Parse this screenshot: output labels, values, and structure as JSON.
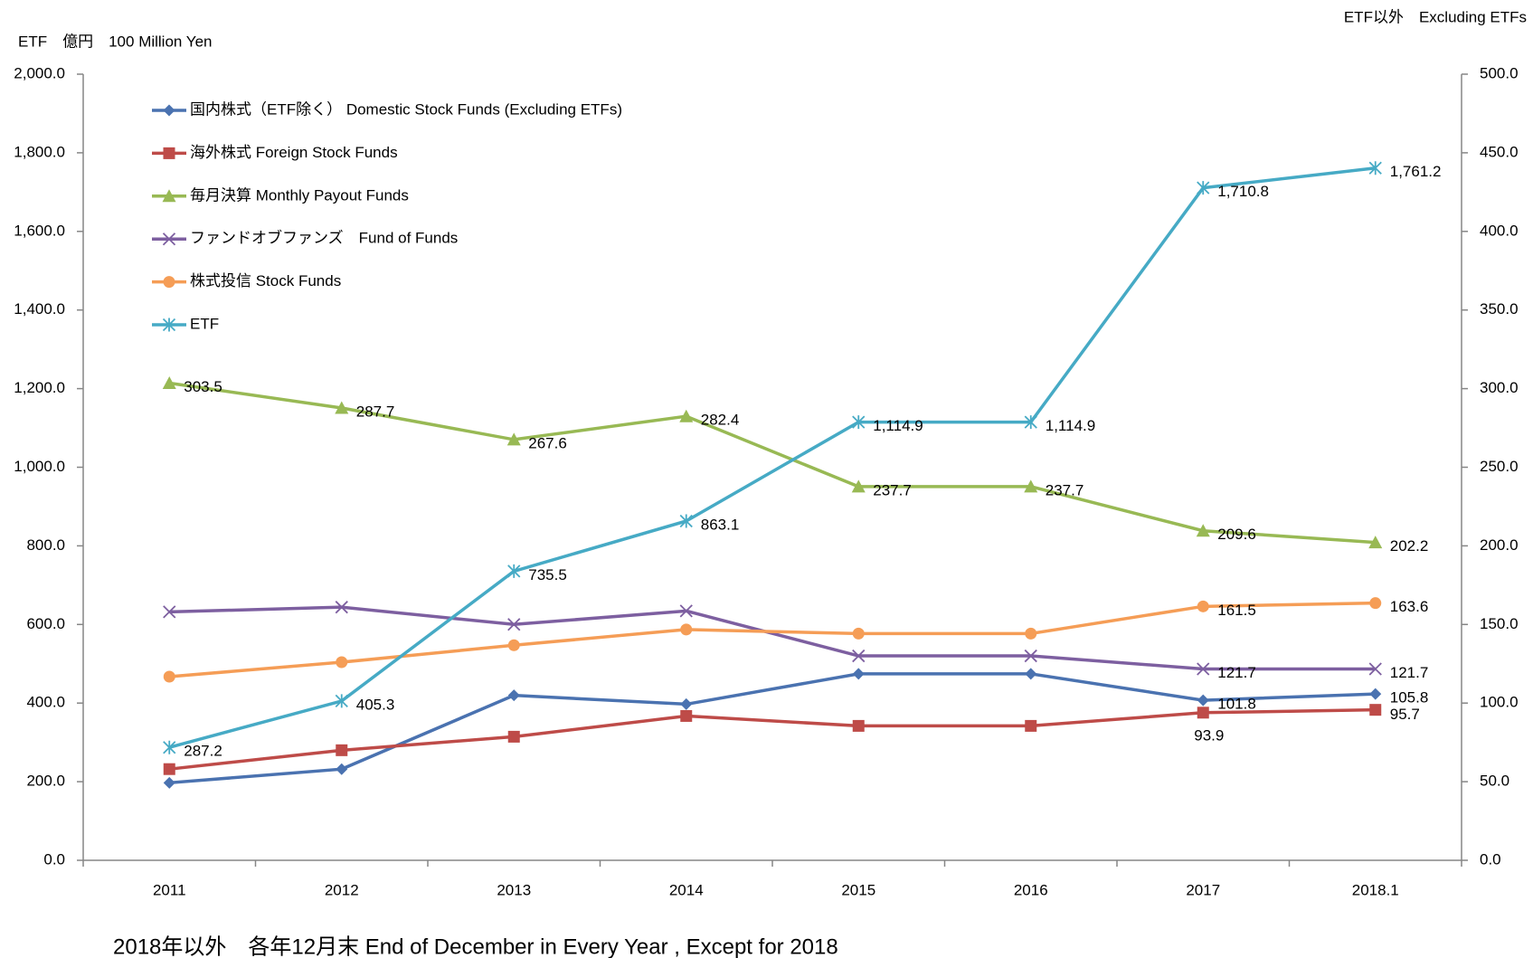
{
  "chart_data": {
    "type": "line",
    "y_label": "ETF　億円　100 Million Yen",
    "y2_label": "ETF以外　Excluding ETFs",
    "footnote": "2018年以外　各年12月末 End of December in Every Year , Except for 2018",
    "categories": [
      "2011",
      "2012",
      "2013",
      "2014",
      "2015",
      "2016",
      "2017",
      "2018.1"
    ],
    "ylim": [
      0,
      2000
    ],
    "yticks": [
      {
        "value": 0,
        "label": "0.0"
      },
      {
        "value": 200,
        "label": "200.0"
      },
      {
        "value": 400,
        "label": "400.0"
      },
      {
        "value": 600,
        "label": "600.0"
      },
      {
        "value": 800,
        "label": "800.0"
      },
      {
        "value": 1000,
        "label": "1,000.0"
      },
      {
        "value": 1200,
        "label": "1,200.0"
      },
      {
        "value": 1400,
        "label": "1,400.0"
      },
      {
        "value": 1600,
        "label": "1,600.0"
      },
      {
        "value": 1800,
        "label": "1,800.0"
      },
      {
        "value": 2000,
        "label": "2,000.0"
      }
    ],
    "y2lim": [
      0,
      500
    ],
    "y2ticks": [
      {
        "value": 0,
        "label": "0.0"
      },
      {
        "value": 50,
        "label": "50.0"
      },
      {
        "value": 100,
        "label": "100.0"
      },
      {
        "value": 150,
        "label": "150.0"
      },
      {
        "value": 200,
        "label": "200.0"
      },
      {
        "value": 250,
        "label": "250.0"
      },
      {
        "value": 300,
        "label": "300.0"
      },
      {
        "value": 350,
        "label": "350.0"
      },
      {
        "value": 400,
        "label": "400.0"
      },
      {
        "value": 450,
        "label": "450.0"
      },
      {
        "value": 500,
        "label": "500.0"
      }
    ],
    "legend": "upper left",
    "series": [
      {
        "name": "国内株式（ETF除く） Domestic Stock Funds (Excluding ETFs)",
        "color": "#4a72b0",
        "marker": "diamond",
        "axis": "y2",
        "values": [
          49.3,
          58,
          104.9,
          99.3,
          118.6,
          118.6,
          101.8,
          105.8
        ],
        "value_labels": [
          null,
          null,
          null,
          null,
          null,
          null,
          "101.8",
          "105.8"
        ]
      },
      {
        "name": "海外株式 Foreign Stock Funds",
        "color": "#be4b48",
        "marker": "square",
        "axis": "y2",
        "values": [
          58,
          70,
          78.6,
          91.8,
          85.5,
          85.5,
          93.9,
          95.7
        ],
        "value_labels": [
          null,
          null,
          null,
          null,
          null,
          null,
          "93.9",
          "95.7"
        ]
      },
      {
        "name": "毎月決算 Monthly Payout Funds",
        "color": "#98b954",
        "marker": "triangle",
        "axis": "y2",
        "values": [
          303.5,
          287.7,
          267.6,
          282.4,
          237.7,
          237.7,
          209.6,
          202.2
        ],
        "value_labels": [
          "303.5",
          "287.7",
          "267.6",
          "282.4",
          "237.7",
          "237.7",
          "209.6",
          "202.2"
        ]
      },
      {
        "name": "ファンドオブファンズ　Fund of Funds",
        "color": "#7d5fa0",
        "marker": "x",
        "axis": "y2",
        "values": [
          158,
          161,
          150,
          158.6,
          130,
          130,
          121.7,
          121.7
        ],
        "value_labels": [
          null,
          null,
          null,
          null,
          null,
          null,
          "121.7",
          "121.7"
        ]
      },
      {
        "name": "株式投信 Stock Funds",
        "color": "#f59d56",
        "marker": "circle",
        "axis": "y2",
        "values": [
          116.8,
          126,
          136.8,
          146.8,
          144.2,
          144.2,
          161.5,
          163.6
        ],
        "value_labels": [
          null,
          null,
          null,
          null,
          null,
          null,
          "161.5",
          "163.6"
        ]
      },
      {
        "name": "ETF",
        "color": "#46aac5",
        "marker": "star",
        "axis": "y",
        "values": [
          287.2,
          405.3,
          735.5,
          863.1,
          1114.9,
          1114.9,
          1710.8,
          1761.2
        ],
        "value_labels": [
          "287.2",
          "405.3",
          "735.5",
          "863.1",
          "1,114.9",
          "1,114.9",
          "1,710.8",
          "1,761.2"
        ]
      }
    ]
  }
}
